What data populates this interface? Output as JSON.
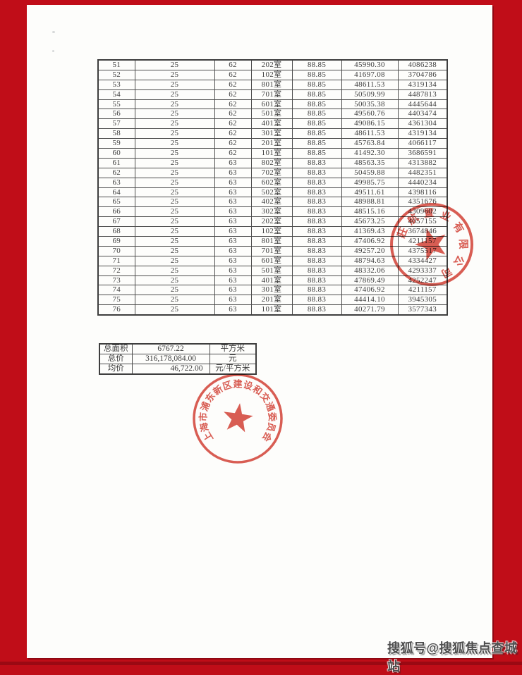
{
  "table": {
    "rows": [
      [
        "51",
        "25",
        "62",
        "202室",
        "88.85",
        "45990.30",
        "4086238"
      ],
      [
        "52",
        "25",
        "62",
        "102室",
        "88.85",
        "41697.08",
        "3704786"
      ],
      [
        "53",
        "25",
        "62",
        "801室",
        "88.85",
        "48611.53",
        "4319134"
      ],
      [
        "54",
        "25",
        "62",
        "701室",
        "88.85",
        "50509.99",
        "4487813"
      ],
      [
        "55",
        "25",
        "62",
        "601室",
        "88.85",
        "50035.38",
        "4445644"
      ],
      [
        "56",
        "25",
        "62",
        "501室",
        "88.85",
        "49560.76",
        "4403474"
      ],
      [
        "57",
        "25",
        "62",
        "401室",
        "88.85",
        "49086.15",
        "4361304"
      ],
      [
        "58",
        "25",
        "62",
        "301室",
        "88.85",
        "48611.53",
        "4319134"
      ],
      [
        "59",
        "25",
        "62",
        "201室",
        "88.85",
        "45763.84",
        "4066117"
      ],
      [
        "60",
        "25",
        "62",
        "101室",
        "88.85",
        "41492.30",
        "3686591"
      ],
      [
        "61",
        "25",
        "63",
        "802室",
        "88.83",
        "48563.35",
        "4313882"
      ],
      [
        "62",
        "25",
        "63",
        "702室",
        "88.83",
        "50459.88",
        "4482351"
      ],
      [
        "63",
        "25",
        "63",
        "602室",
        "88.83",
        "49985.75",
        "4440234"
      ],
      [
        "64",
        "25",
        "63",
        "502室",
        "88.83",
        "49511.61",
        "4398116"
      ],
      [
        "65",
        "25",
        "63",
        "402室",
        "88.83",
        "48988.81",
        "4351676"
      ],
      [
        "66",
        "25",
        "63",
        "302室",
        "88.83",
        "48515.16",
        "4309602"
      ],
      [
        "67",
        "25",
        "63",
        "202室",
        "88.83",
        "45673.25",
        "4057155"
      ],
      [
        "68",
        "25",
        "63",
        "102室",
        "88.83",
        "41369.43",
        "3674846"
      ],
      [
        "69",
        "25",
        "63",
        "801室",
        "88.83",
        "47406.92",
        "4211157"
      ],
      [
        "70",
        "25",
        "63",
        "701室",
        "88.83",
        "49257.20",
        "4375517"
      ],
      [
        "71",
        "25",
        "63",
        "601室",
        "88.83",
        "48794.63",
        "4334427"
      ],
      [
        "72",
        "25",
        "63",
        "501室",
        "88.83",
        "48332.06",
        "4293337"
      ],
      [
        "73",
        "25",
        "63",
        "401室",
        "88.83",
        "47869.49",
        "4252247"
      ],
      [
        "74",
        "25",
        "63",
        "301室",
        "88.83",
        "47406.92",
        "4211157"
      ],
      [
        "75",
        "25",
        "63",
        "201室",
        "88.83",
        "44414.10",
        "3945305"
      ],
      [
        "76",
        "25",
        "63",
        "101室",
        "88.83",
        "40271.79",
        "3577343"
      ]
    ]
  },
  "summary": {
    "rows": [
      {
        "label": "总面积",
        "value": "6767.22",
        "unit": "平方米"
      },
      {
        "label": "总价",
        "value": "316,178,084.00",
        "unit": "元"
      },
      {
        "label": "均价",
        "value": "46,722.00",
        "unit": "元/平方米"
      }
    ]
  },
  "stamps": [
    {
      "name": "company-seal-stamp",
      "text": "莊航置业有限公司",
      "color": "#d23a2e"
    },
    {
      "name": "government-seal-stamp",
      "text": "上海市浦东新区建设和交通委员会",
      "color": "#d23a2e"
    }
  ],
  "watermark": {
    "text": "搜狐号@搜狐焦点查城站"
  },
  "colors": {
    "frame_red": "#c00d18",
    "stamp_red": "#d23a2e",
    "ink": "#3c3c3c"
  }
}
